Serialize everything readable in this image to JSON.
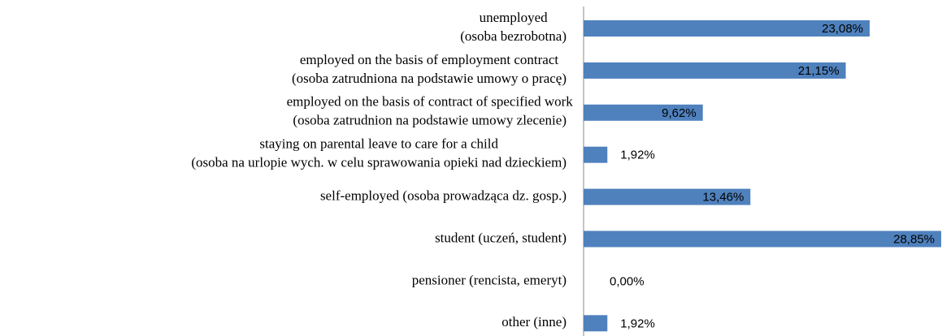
{
  "chart_data": {
    "type": "hbar",
    "categories": [
      [
        "unemployed",
        "(osoba bezrobotna)"
      ],
      [
        "employed on the basis of employment contract",
        "(osoba zatrudniona na podstawie umowy o pracę)"
      ],
      [
        "employed on the basis of contract of specified work",
        "(osoba zatrudnion na podstawie umowy zlecenie)"
      ],
      [
        "staying on parental leave to care for a child",
        "(osoba na urlopie wych. w celu sprawowania opieki nad dzieckiem)"
      ],
      [
        "self-employed (osoba prowadząca dz. gosp.)"
      ],
      [
        "student (uczeń, student)"
      ],
      [
        "pensioner (rencista, emeryt)"
      ],
      [
        "other (inne)"
      ]
    ],
    "values": [
      23.08,
      21.15,
      9.62,
      1.92,
      13.46,
      28.85,
      0,
      1.92
    ],
    "value_labels": [
      "23,08%",
      "21,15%",
      "9,62%",
      "1,92%",
      "13,46%",
      "28,85%",
      "0,00%",
      "1,92%"
    ],
    "color": "#4f81bd"
  }
}
